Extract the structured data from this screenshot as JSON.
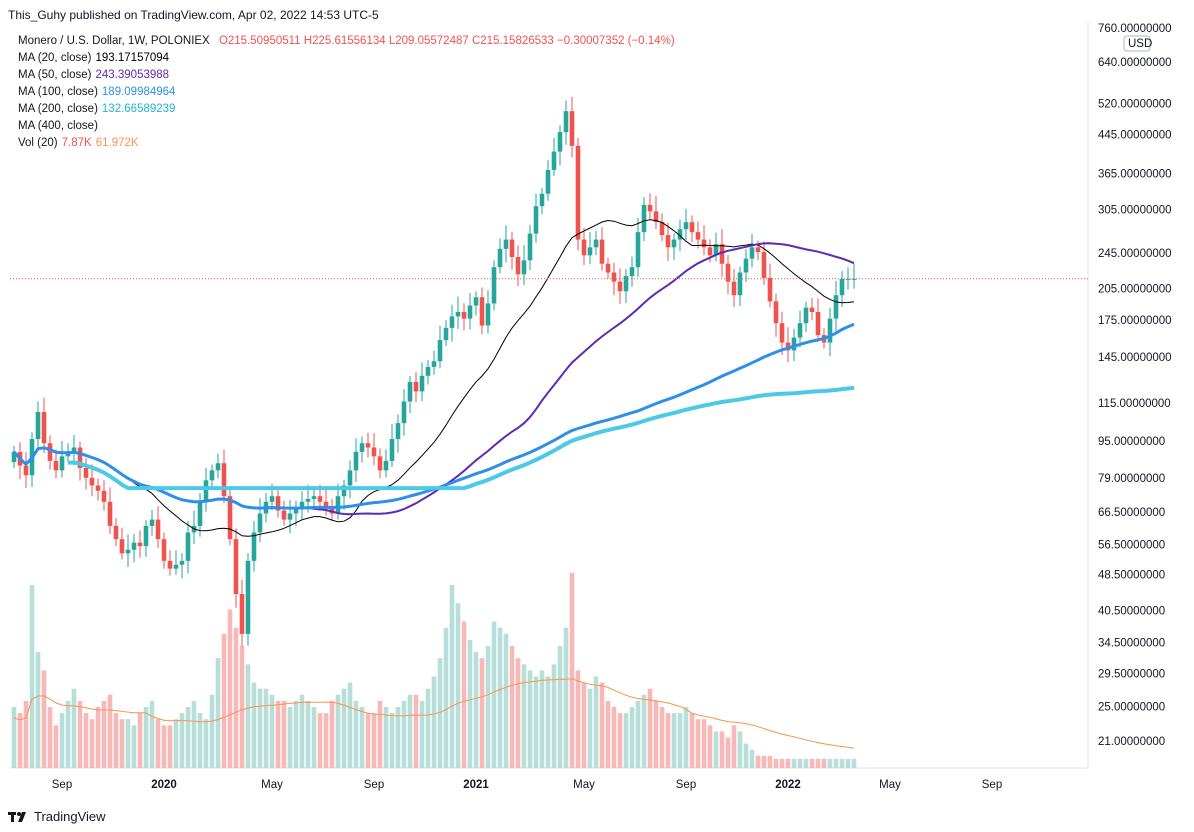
{
  "header": {
    "published": "This_Guhy published on TradingView.com, Apr 02, 2022 14:53 UTC-5"
  },
  "legend": {
    "symbol": "Monero / U.S. Dollar, 1W, POLONIEX",
    "ohlc": "O215.50950511  H225.61556134  L209.05572487  C215.15826533  −0.30007352 (−0.14%)",
    "ma20_label": "MA (20, close)",
    "ma20_value": "193.17157094",
    "ma50_label": "MA (50, close)",
    "ma50_value": "243.39053988",
    "ma100_label": "MA (100, close)",
    "ma100_value": "189.09984964",
    "ma200_label": "MA (200, close)",
    "ma200_value": "132.66589239",
    "ma400_label": "MA (400, close)",
    "vol_label": "Vol (20)",
    "vol_value": "7.87K",
    "vol_ma_value": "61.972K"
  },
  "currency": "USD",
  "footer": {
    "brand": "TradingView"
  },
  "colors": {
    "up": "#26a69a",
    "down": "#ef5350",
    "ma20": "#000000",
    "ma50": "#5b2bb3",
    "ma100": "#2d8fe9",
    "ma200": "#4cc9e6",
    "volma": "#f7954d"
  },
  "chart_data": {
    "type": "candlestick",
    "title": "Monero / U.S. Dollar, 1W, POLONIEX",
    "price_scale": "log",
    "y_ticks": [
      "760.00000000",
      "640.00000000",
      "520.00000000",
      "445.00000000",
      "365.00000000",
      "305.00000000",
      "245.00000000",
      "205.00000000",
      "175.00000000",
      "145.00000000",
      "115.00000000",
      "95.00000000",
      "79.00000000",
      "66.50000000",
      "56.50000000",
      "48.50000000",
      "40.50000000",
      "34.50000000",
      "29.50000000",
      "25.00000000",
      "21.00000000"
    ],
    "y_tick_values": [
      760,
      640,
      520,
      445,
      365,
      305,
      245,
      205,
      175,
      145,
      115,
      95,
      79,
      66.5,
      56.5,
      48.5,
      40.5,
      34.5,
      29.5,
      25,
      21
    ],
    "x_ticks": [
      {
        "label": "Sep",
        "week": 8,
        "bold": false
      },
      {
        "label": "2020",
        "week": 25,
        "bold": true
      },
      {
        "label": "May",
        "week": 43,
        "bold": false
      },
      {
        "label": "Sep",
        "week": 60,
        "bold": false
      },
      {
        "label": "2021",
        "week": 77,
        "bold": true
      },
      {
        "label": "May",
        "week": 95,
        "bold": false
      },
      {
        "label": "Sep",
        "week": 112,
        "bold": false
      },
      {
        "label": "2022",
        "week": 129,
        "bold": true
      },
      {
        "label": "May",
        "week": 146,
        "bold": false
      },
      {
        "label": "Sep",
        "week": 163,
        "bold": false
      }
    ],
    "last_close": 215.16,
    "weeks": 141,
    "closes": [
      90,
      84,
      80,
      96,
      110,
      94,
      86,
      82,
      88,
      90,
      92,
      83,
      79,
      76,
      74,
      70,
      62,
      58,
      54,
      55,
      57,
      56,
      62,
      64,
      58,
      52,
      50,
      51,
      52,
      60,
      62,
      70,
      78,
      82,
      85,
      72,
      58,
      44,
      36,
      52,
      60,
      66,
      70,
      72,
      67,
      64,
      66,
      68,
      70,
      71,
      72,
      70,
      68,
      66,
      72,
      76,
      82,
      90,
      94,
      92,
      88,
      82,
      86,
      96,
      104,
      116,
      128,
      122,
      132,
      138,
      142,
      158,
      168,
      178,
      182,
      176,
      188,
      196,
      170,
      190,
      228,
      250,
      262,
      240,
      220,
      236,
      270,
      310,
      330,
      372,
      408,
      450,
      500,
      420,
      262,
      242,
      252,
      262,
      232,
      222,
      212,
      202,
      218,
      228,
      272,
      312,
      302,
      286,
      268,
      252,
      262,
      276,
      286,
      272,
      262,
      252,
      242,
      256,
      232,
      212,
      198,
      222,
      238,
      252,
      246,
      216,
      192,
      172,
      156,
      150,
      160,
      172,
      186,
      182,
      162,
      156,
      176,
      198,
      215,
      215,
      215
    ],
    "volumes": [
      20,
      18,
      22,
      60,
      38,
      32,
      20,
      14,
      18,
      22,
      26,
      22,
      18,
      16,
      20,
      22,
      24,
      18,
      16,
      16,
      14,
      18,
      20,
      22,
      16,
      14,
      14,
      16,
      18,
      20,
      22,
      18,
      16,
      24,
      36,
      44,
      52,
      46,
      40,
      34,
      28,
      26,
      26,
      24,
      22,
      22,
      20,
      22,
      24,
      22,
      20,
      18,
      18,
      22,
      24,
      26,
      28,
      22,
      20,
      18,
      18,
      22,
      20,
      18,
      20,
      22,
      24,
      24,
      22,
      26,
      30,
      36,
      46,
      60,
      54,
      48,
      42,
      38,
      36,
      40,
      48,
      46,
      44,
      40,
      36,
      34,
      32,
      30,
      32,
      30,
      34,
      40,
      46,
      64,
      32,
      28,
      26,
      30,
      28,
      22,
      20,
      18,
      18,
      20,
      22,
      24,
      26,
      22,
      20,
      18,
      18,
      18,
      20,
      18,
      16,
      16,
      14,
      12,
      12,
      10,
      14,
      12,
      8,
      6,
      4,
      4,
      4,
      3,
      3,
      3,
      3,
      3,
      3,
      3,
      3,
      3,
      3,
      3,
      3,
      3,
      3
    ]
  }
}
